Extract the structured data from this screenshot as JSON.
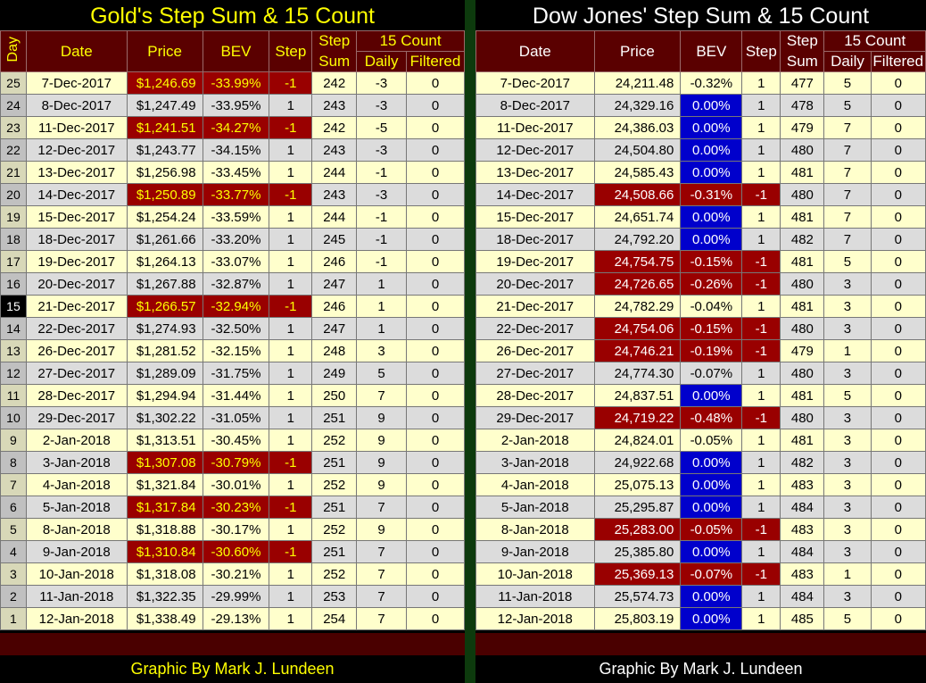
{
  "gold": {
    "title": "Gold's Step Sum & 15 Count",
    "headers": {
      "day": "Day",
      "date": "Date",
      "price": "Price",
      "bev": "BEV",
      "step": "Step",
      "step_sum_1": "Step",
      "step_sum_2": "Sum",
      "count_group": "15 Count",
      "daily": "Daily",
      "filtered": "Filtered"
    },
    "credit": "Graphic By Mark J. Lundeen",
    "rows": [
      {
        "day": "25",
        "date": "7-Dec-2017",
        "price": "$1,246.69",
        "bev": "-33.99%",
        "step": "-1",
        "sum": "242",
        "daily": "-3",
        "filtered": "0",
        "neg": true
      },
      {
        "day": "24",
        "date": "8-Dec-2017",
        "price": "$1,247.49",
        "bev": "-33.95%",
        "step": "1",
        "sum": "243",
        "daily": "-3",
        "filtered": "0",
        "neg": false
      },
      {
        "day": "23",
        "date": "11-Dec-2017",
        "price": "$1,241.51",
        "bev": "-34.27%",
        "step": "-1",
        "sum": "242",
        "daily": "-5",
        "filtered": "0",
        "neg": true
      },
      {
        "day": "22",
        "date": "12-Dec-2017",
        "price": "$1,243.77",
        "bev": "-34.15%",
        "step": "1",
        "sum": "243",
        "daily": "-3",
        "filtered": "0",
        "neg": false
      },
      {
        "day": "21",
        "date": "13-Dec-2017",
        "price": "$1,256.98",
        "bev": "-33.45%",
        "step": "1",
        "sum": "244",
        "daily": "-1",
        "filtered": "0",
        "neg": false
      },
      {
        "day": "20",
        "date": "14-Dec-2017",
        "price": "$1,250.89",
        "bev": "-33.77%",
        "step": "-1",
        "sum": "243",
        "daily": "-3",
        "filtered": "0",
        "neg": true
      },
      {
        "day": "19",
        "date": "15-Dec-2017",
        "price": "$1,254.24",
        "bev": "-33.59%",
        "step": "1",
        "sum": "244",
        "daily": "-1",
        "filtered": "0",
        "neg": false
      },
      {
        "day": "18",
        "date": "18-Dec-2017",
        "price": "$1,261.66",
        "bev": "-33.20%",
        "step": "1",
        "sum": "245",
        "daily": "-1",
        "filtered": "0",
        "neg": false
      },
      {
        "day": "17",
        "date": "19-Dec-2017",
        "price": "$1,264.13",
        "bev": "-33.07%",
        "step": "1",
        "sum": "246",
        "daily": "-1",
        "filtered": "0",
        "neg": false
      },
      {
        "day": "16",
        "date": "20-Dec-2017",
        "price": "$1,267.88",
        "bev": "-32.87%",
        "step": "1",
        "sum": "247",
        "daily": "1",
        "filtered": "0",
        "neg": false
      },
      {
        "day": "15",
        "date": "21-Dec-2017",
        "price": "$1,266.57",
        "bev": "-32.94%",
        "step": "-1",
        "sum": "246",
        "daily": "1",
        "filtered": "0",
        "neg": true
      },
      {
        "day": "14",
        "date": "22-Dec-2017",
        "price": "$1,274.93",
        "bev": "-32.50%",
        "step": "1",
        "sum": "247",
        "daily": "1",
        "filtered": "0",
        "neg": false
      },
      {
        "day": "13",
        "date": "26-Dec-2017",
        "price": "$1,281.52",
        "bev": "-32.15%",
        "step": "1",
        "sum": "248",
        "daily": "3",
        "filtered": "0",
        "neg": false
      },
      {
        "day": "12",
        "date": "27-Dec-2017",
        "price": "$1,289.09",
        "bev": "-31.75%",
        "step": "1",
        "sum": "249",
        "daily": "5",
        "filtered": "0",
        "neg": false
      },
      {
        "day": "11",
        "date": "28-Dec-2017",
        "price": "$1,294.94",
        "bev": "-31.44%",
        "step": "1",
        "sum": "250",
        "daily": "7",
        "filtered": "0",
        "neg": false
      },
      {
        "day": "10",
        "date": "29-Dec-2017",
        "price": "$1,302.22",
        "bev": "-31.05%",
        "step": "1",
        "sum": "251",
        "daily": "9",
        "filtered": "0",
        "neg": false
      },
      {
        "day": "9",
        "date": "2-Jan-2018",
        "price": "$1,313.51",
        "bev": "-30.45%",
        "step": "1",
        "sum": "252",
        "daily": "9",
        "filtered": "0",
        "neg": false
      },
      {
        "day": "8",
        "date": "3-Jan-2018",
        "price": "$1,307.08",
        "bev": "-30.79%",
        "step": "-1",
        "sum": "251",
        "daily": "9",
        "filtered": "0",
        "neg": true
      },
      {
        "day": "7",
        "date": "4-Jan-2018",
        "price": "$1,321.84",
        "bev": "-30.01%",
        "step": "1",
        "sum": "252",
        "daily": "9",
        "filtered": "0",
        "neg": false
      },
      {
        "day": "6",
        "date": "5-Jan-2018",
        "price": "$1,317.84",
        "bev": "-30.23%",
        "step": "-1",
        "sum": "251",
        "daily": "7",
        "filtered": "0",
        "neg": true
      },
      {
        "day": "5",
        "date": "8-Jan-2018",
        "price": "$1,318.88",
        "bev": "-30.17%",
        "step": "1",
        "sum": "252",
        "daily": "9",
        "filtered": "0",
        "neg": false
      },
      {
        "day": "4",
        "date": "9-Jan-2018",
        "price": "$1,310.84",
        "bev": "-30.60%",
        "step": "-1",
        "sum": "251",
        "daily": "7",
        "filtered": "0",
        "neg": true
      },
      {
        "day": "3",
        "date": "10-Jan-2018",
        "price": "$1,318.08",
        "bev": "-30.21%",
        "step": "1",
        "sum": "252",
        "daily": "7",
        "filtered": "0",
        "neg": false
      },
      {
        "day": "2",
        "date": "11-Jan-2018",
        "price": "$1,322.35",
        "bev": "-29.99%",
        "step": "1",
        "sum": "253",
        "daily": "7",
        "filtered": "0",
        "neg": false
      },
      {
        "day": "1",
        "date": "12-Jan-2018",
        "price": "$1,338.49",
        "bev": "-29.13%",
        "step": "1",
        "sum": "254",
        "daily": "7",
        "filtered": "0",
        "neg": false
      }
    ]
  },
  "dow": {
    "title": "Dow Jones' Step Sum & 15 Count",
    "headers": {
      "date": "Date",
      "price": "Price",
      "bev": "BEV",
      "step": "Step",
      "step_sum_1": "Step",
      "step_sum_2": "Sum",
      "count_group": "15 Count",
      "daily": "Daily",
      "filtered": "Filtered"
    },
    "credit": "Graphic By Mark J. Lundeen",
    "rows": [
      {
        "date": "7-Dec-2017",
        "price": "24,211.48",
        "bev": "-0.32%",
        "step": "1",
        "sum": "477",
        "daily": "5",
        "filtered": "0",
        "neg": false,
        "blue": false
      },
      {
        "date": "8-Dec-2017",
        "price": "24,329.16",
        "bev": "0.00%",
        "step": "1",
        "sum": "478",
        "daily": "5",
        "filtered": "0",
        "neg": false,
        "blue": true
      },
      {
        "date": "11-Dec-2017",
        "price": "24,386.03",
        "bev": "0.00%",
        "step": "1",
        "sum": "479",
        "daily": "7",
        "filtered": "0",
        "neg": false,
        "blue": true
      },
      {
        "date": "12-Dec-2017",
        "price": "24,504.80",
        "bev": "0.00%",
        "step": "1",
        "sum": "480",
        "daily": "7",
        "filtered": "0",
        "neg": false,
        "blue": true
      },
      {
        "date": "13-Dec-2017",
        "price": "24,585.43",
        "bev": "0.00%",
        "step": "1",
        "sum": "481",
        "daily": "7",
        "filtered": "0",
        "neg": false,
        "blue": true
      },
      {
        "date": "14-Dec-2017",
        "price": "24,508.66",
        "bev": "-0.31%",
        "step": "-1",
        "sum": "480",
        "daily": "7",
        "filtered": "0",
        "neg": true,
        "blue": false
      },
      {
        "date": "15-Dec-2017",
        "price": "24,651.74",
        "bev": "0.00%",
        "step": "1",
        "sum": "481",
        "daily": "7",
        "filtered": "0",
        "neg": false,
        "blue": true
      },
      {
        "date": "18-Dec-2017",
        "price": "24,792.20",
        "bev": "0.00%",
        "step": "1",
        "sum": "482",
        "daily": "7",
        "filtered": "0",
        "neg": false,
        "blue": true
      },
      {
        "date": "19-Dec-2017",
        "price": "24,754.75",
        "bev": "-0.15%",
        "step": "-1",
        "sum": "481",
        "daily": "5",
        "filtered": "0",
        "neg": true,
        "blue": false
      },
      {
        "date": "20-Dec-2017",
        "price": "24,726.65",
        "bev": "-0.26%",
        "step": "-1",
        "sum": "480",
        "daily": "3",
        "filtered": "0",
        "neg": true,
        "blue": false
      },
      {
        "date": "21-Dec-2017",
        "price": "24,782.29",
        "bev": "-0.04%",
        "step": "1",
        "sum": "481",
        "daily": "3",
        "filtered": "0",
        "neg": false,
        "blue": false
      },
      {
        "date": "22-Dec-2017",
        "price": "24,754.06",
        "bev": "-0.15%",
        "step": "-1",
        "sum": "480",
        "daily": "3",
        "filtered": "0",
        "neg": true,
        "blue": false
      },
      {
        "date": "26-Dec-2017",
        "price": "24,746.21",
        "bev": "-0.19%",
        "step": "-1",
        "sum": "479",
        "daily": "1",
        "filtered": "0",
        "neg": true,
        "blue": false
      },
      {
        "date": "27-Dec-2017",
        "price": "24,774.30",
        "bev": "-0.07%",
        "step": "1",
        "sum": "480",
        "daily": "3",
        "filtered": "0",
        "neg": false,
        "blue": false
      },
      {
        "date": "28-Dec-2017",
        "price": "24,837.51",
        "bev": "0.00%",
        "step": "1",
        "sum": "481",
        "daily": "5",
        "filtered": "0",
        "neg": false,
        "blue": true
      },
      {
        "date": "29-Dec-2017",
        "price": "24,719.22",
        "bev": "-0.48%",
        "step": "-1",
        "sum": "480",
        "daily": "3",
        "filtered": "0",
        "neg": true,
        "blue": false
      },
      {
        "date": "2-Jan-2018",
        "price": "24,824.01",
        "bev": "-0.05%",
        "step": "1",
        "sum": "481",
        "daily": "3",
        "filtered": "0",
        "neg": false,
        "blue": false
      },
      {
        "date": "3-Jan-2018",
        "price": "24,922.68",
        "bev": "0.00%",
        "step": "1",
        "sum": "482",
        "daily": "3",
        "filtered": "0",
        "neg": false,
        "blue": true
      },
      {
        "date": "4-Jan-2018",
        "price": "25,075.13",
        "bev": "0.00%",
        "step": "1",
        "sum": "483",
        "daily": "3",
        "filtered": "0",
        "neg": false,
        "blue": true
      },
      {
        "date": "5-Jan-2018",
        "price": "25,295.87",
        "bev": "0.00%",
        "step": "1",
        "sum": "484",
        "daily": "3",
        "filtered": "0",
        "neg": false,
        "blue": true
      },
      {
        "date": "8-Jan-2018",
        "price": "25,283.00",
        "bev": "-0.05%",
        "step": "-1",
        "sum": "483",
        "daily": "3",
        "filtered": "0",
        "neg": true,
        "blue": false
      },
      {
        "date": "9-Jan-2018",
        "price": "25,385.80",
        "bev": "0.00%",
        "step": "1",
        "sum": "484",
        "daily": "3",
        "filtered": "0",
        "neg": false,
        "blue": true
      },
      {
        "date": "10-Jan-2018",
        "price": "25,369.13",
        "bev": "-0.07%",
        "step": "-1",
        "sum": "483",
        "daily": "1",
        "filtered": "0",
        "neg": true,
        "blue": false
      },
      {
        "date": "11-Jan-2018",
        "price": "25,574.73",
        "bev": "0.00%",
        "step": "1",
        "sum": "484",
        "daily": "3",
        "filtered": "0",
        "neg": false,
        "blue": true
      },
      {
        "date": "12-Jan-2018",
        "price": "25,803.19",
        "bev": "0.00%",
        "step": "1",
        "sum": "485",
        "daily": "5",
        "filtered": "0",
        "neg": false,
        "blue": true
      }
    ]
  },
  "colors": {
    "header_bg": "#5a0000",
    "neg_red": "#990000",
    "blue": "#0000cc",
    "yellow_row": "#ffffcc",
    "gray_row": "#dcdcdc",
    "gold_title": "#ffff00"
  }
}
